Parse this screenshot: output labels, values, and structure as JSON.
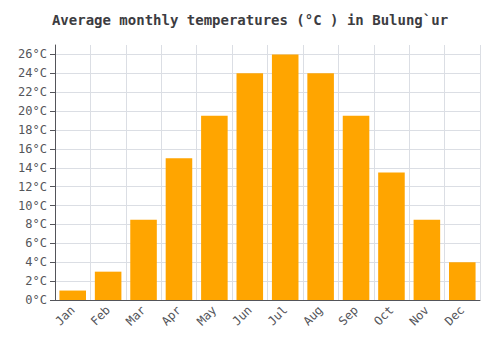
{
  "chart_data": {
    "type": "bar",
    "title": "Average monthly temperatures (°C ) in Bulung`ur",
    "categories": [
      "Jan",
      "Feb",
      "Mar",
      "Apr",
      "May",
      "Jun",
      "Jul",
      "Aug",
      "Sep",
      "Oct",
      "Nov",
      "Dec"
    ],
    "values": [
      1,
      3,
      8.5,
      15,
      19.5,
      24,
      26,
      24,
      19.5,
      13.5,
      8.5,
      4
    ],
    "color": "#FFA500",
    "ylim": [
      0,
      27
    ],
    "yticks": [
      {
        "value": 0,
        "label": "0°C"
      },
      {
        "value": 2,
        "label": "2°C"
      },
      {
        "value": 4,
        "label": "4°C"
      },
      {
        "value": 6,
        "label": "6°C"
      },
      {
        "value": 8,
        "label": "8°C"
      },
      {
        "value": 10,
        "label": "10°C"
      },
      {
        "value": 12,
        "label": "12°C"
      },
      {
        "value": 14,
        "label": "14°C"
      },
      {
        "value": 16,
        "label": "16°C"
      },
      {
        "value": 18,
        "label": "18°C"
      },
      {
        "value": 20,
        "label": "20°C"
      },
      {
        "value": 22,
        "label": "22°C"
      },
      {
        "value": 24,
        "label": "24°C"
      },
      {
        "value": 26,
        "label": "26°C"
      }
    ],
    "grid": true
  }
}
